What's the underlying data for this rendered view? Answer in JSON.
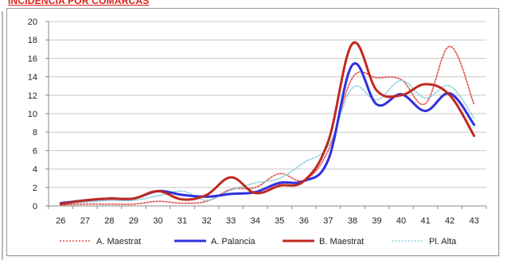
{
  "header": {
    "title": "INCIDENCIA POR COMARCAS"
  },
  "chart_data": {
    "type": "line",
    "title": "",
    "xlabel": "",
    "ylabel": "",
    "categories": [
      "26",
      "27",
      "28",
      "29",
      "30",
      "31",
      "32",
      "33",
      "34",
      "35",
      "36",
      "37",
      "38",
      "39",
      "40",
      "41",
      "42",
      "43"
    ],
    "ylim": [
      0,
      20
    ],
    "yticks": [
      0,
      2,
      4,
      6,
      8,
      10,
      12,
      14,
      16,
      18,
      20
    ],
    "grid": true,
    "legend_position": "bottom",
    "series": [
      {
        "name": "A. Maestrat",
        "color": "#e05050",
        "style": "dotted",
        "values": [
          0.1,
          0.2,
          0.2,
          0.2,
          0.5,
          0.3,
          0.5,
          1.8,
          2.0,
          3.5,
          2.8,
          6.0,
          13.9,
          13.9,
          13.7,
          11.1,
          17.3,
          11.0
        ]
      },
      {
        "name": "A. Palancia",
        "color": "#3030e0",
        "style": "solid",
        "values": [
          0.3,
          0.6,
          0.8,
          0.8,
          1.6,
          1.2,
          1.0,
          1.3,
          1.5,
          2.5,
          2.7,
          5.0,
          15.3,
          11.0,
          12.1,
          10.3,
          12.2,
          8.8
        ]
      },
      {
        "name": "B. Maestrat",
        "color": "#c0281e",
        "style": "solid",
        "values": [
          0.2,
          0.6,
          0.8,
          0.8,
          1.6,
          0.7,
          1.2,
          3.1,
          1.4,
          2.2,
          2.7,
          7.0,
          17.6,
          12.5,
          12.0,
          13.2,
          12.0,
          7.6
        ]
      },
      {
        "name": "Pl. Alta",
        "color": "#8ad0e0",
        "style": "dotted",
        "values": [
          0.2,
          0.4,
          0.6,
          0.6,
          1.1,
          1.6,
          0.6,
          1.7,
          2.5,
          3.0,
          4.7,
          6.5,
          12.8,
          11.5,
          13.6,
          11.7,
          13.0,
          9.5
        ]
      }
    ]
  }
}
